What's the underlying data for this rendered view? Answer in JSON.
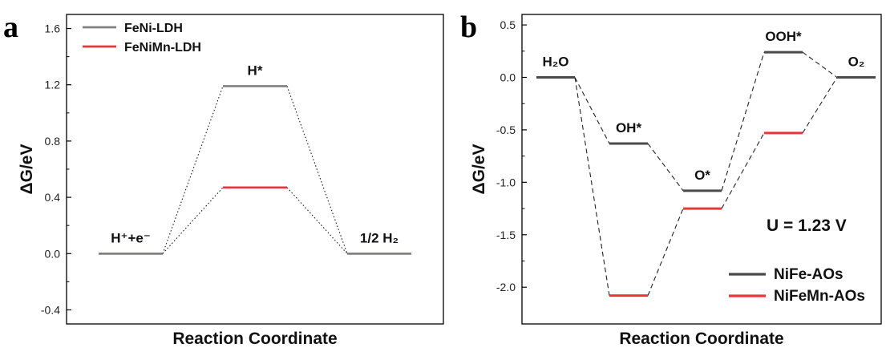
{
  "chart_data": [
    {
      "panel": "a",
      "type": "line",
      "xlabel": "Reaction Coordinate",
      "ylabel": "ΔG/eV",
      "ylim": [
        -0.5,
        1.7
      ],
      "yticks": [
        -0.4,
        0.0,
        0.4,
        0.8,
        1.2,
        1.6
      ],
      "states": [
        {
          "label": "H⁺+e⁻"
        },
        {
          "label": "H*"
        },
        {
          "label": "1/2 H₂"
        }
      ],
      "series": [
        {
          "name": "FeNi-LDH",
          "color": "#808080",
          "values": [
            0.0,
            1.19,
            0.0
          ]
        },
        {
          "name": "FeNiMn-LDH",
          "color": "#e8363a",
          "values": [
            0.0,
            0.47,
            0.0
          ]
        }
      ],
      "legend": "top-left",
      "connector_style": "dotted"
    },
    {
      "panel": "b",
      "type": "line",
      "xlabel": "Reaction Coordinate",
      "ylabel": "ΔG/eV",
      "ylim": [
        -2.35,
        0.6
      ],
      "yticks": [
        -2.0,
        -1.5,
        -1.0,
        -0.5,
        0.0,
        0.5
      ],
      "annotation": "U = 1.23 V",
      "states": [
        {
          "label": "H₂O"
        },
        {
          "label": "OH*"
        },
        {
          "label": "O*"
        },
        {
          "label": "OOH*"
        },
        {
          "label": "O₂"
        }
      ],
      "series": [
        {
          "name": "NiFe-AOs",
          "color": "#4a4a4a",
          "values": [
            0.0,
            -0.63,
            -1.08,
            0.24,
            0.0
          ]
        },
        {
          "name": "NiFeMn-AOs",
          "color": "#e8363a",
          "values": [
            0.0,
            -2.08,
            -1.25,
            -0.53,
            0.0
          ]
        }
      ],
      "legend": "bottom-right",
      "connector_style": "dashed"
    }
  ]
}
